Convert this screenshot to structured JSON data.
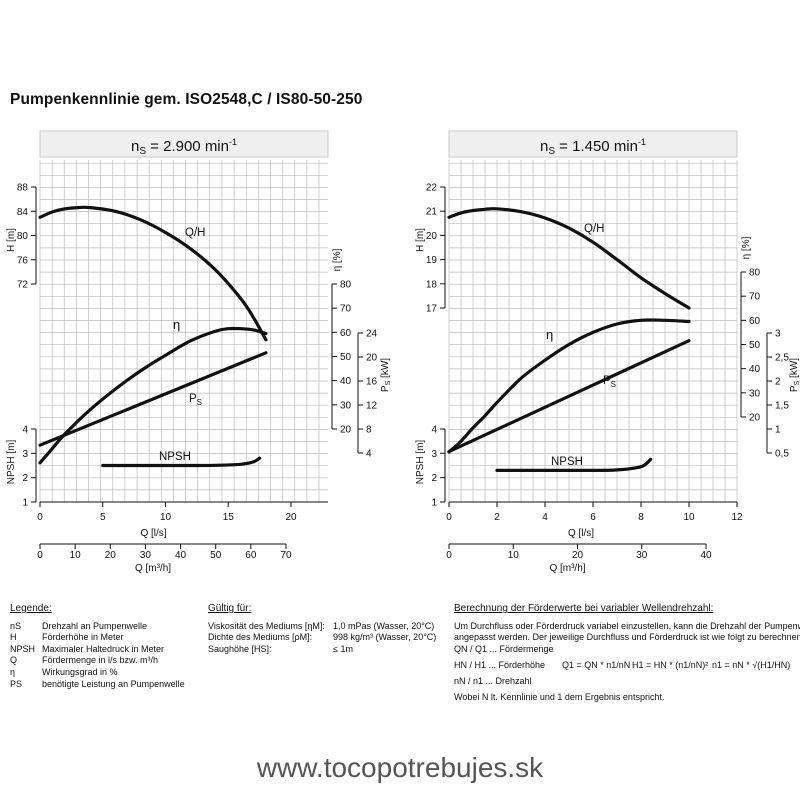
{
  "page_title": "Pumpenkennlinie gem. ISO2548,C / IS80-50-250",
  "website": "www.tocopotrebujes.sk",
  "colors": {
    "grid": "#bbbbbb",
    "curve": "#111111",
    "header_bg": "#efefef"
  },
  "chart_data": [
    {
      "type": "line",
      "title": "n",
      "title_sub": "S",
      "title_value": " = 2.900 min",
      "title_sup": "-1",
      "x": {
        "label": "Q [l/s]",
        "ticks": [
          0,
          5,
          10,
          15,
          20
        ],
        "range": [
          0,
          23.6
        ]
      },
      "x2": {
        "label": "Q [m³/h]",
        "ticks": [
          0,
          10,
          20,
          30,
          40,
          50,
          60,
          70
        ]
      },
      "h_axis": {
        "label": "H [m]",
        "ticks": [
          72,
          76,
          80,
          84,
          88
        ]
      },
      "npsh_axis": {
        "label": "NPSH [m]",
        "ticks": [
          1,
          2,
          3,
          4
        ]
      },
      "eta_axis": {
        "label": "η [%]",
        "ticks": [
          20,
          30,
          40,
          50,
          60,
          70,
          80
        ]
      },
      "ps_axis": {
        "label": "P",
        "label_sub": "S",
        "label_unit": " [kW]",
        "ticks": [
          "4",
          "8",
          "12",
          "16",
          "20",
          "24"
        ]
      },
      "series": [
        {
          "name": "Q/H",
          "x": [
            0,
            1,
            2,
            3,
            4,
            6,
            8,
            10,
            12,
            14,
            16,
            17,
            18
          ],
          "y": [
            83.0,
            83.9,
            84.4,
            84.6,
            84.6,
            84.0,
            82.6,
            80.5,
            77.8,
            74.3,
            69.6,
            66.5,
            62.8
          ]
        },
        {
          "name": "η",
          "x": [
            0,
            1,
            2,
            4,
            6,
            8,
            10,
            12,
            14,
            15,
            16,
            17,
            18
          ],
          "y": [
            6,
            12,
            18,
            28,
            36.5,
            44.0,
            50.5,
            56.5,
            60.5,
            61.5,
            61.5,
            61,
            59.5
          ]
        },
        {
          "name": "P",
          "label_sub": "S",
          "x": [
            0,
            18
          ],
          "y": [
            5.3,
            20.7
          ]
        },
        {
          "name": "NPSH",
          "x": [
            5,
            8,
            10,
            12,
            14,
            16,
            17,
            17.5
          ],
          "y": [
            2.5,
            2.5,
            2.5,
            2.5,
            2.51,
            2.55,
            2.65,
            2.8
          ]
        }
      ]
    },
    {
      "type": "line",
      "title": "n",
      "title_sub": "S",
      "title_value": " = 1.450 min",
      "title_sup": "-1",
      "x": {
        "label": "Q [l/s]",
        "ticks": [
          0,
          2,
          4,
          6,
          8,
          10,
          12
        ],
        "range": [
          0,
          12
        ]
      },
      "x2": {
        "label": "Q [m³/h]",
        "ticks": [
          0,
          10,
          20,
          30,
          40
        ]
      },
      "h_axis": {
        "label": "H [m]",
        "ticks": [
          17,
          18,
          19,
          20,
          21,
          22
        ]
      },
      "npsh_axis": {
        "label": "NPSH [m]",
        "ticks": [
          1,
          2,
          3,
          4
        ]
      },
      "eta_axis": {
        "label": "η [%]",
        "ticks": [
          20,
          30,
          40,
          50,
          60,
          70,
          80
        ]
      },
      "ps_axis": {
        "label": "P",
        "label_sub": "S",
        "label_unit": " [kW]",
        "ticks": [
          "0,5",
          "1",
          "1,5",
          "2",
          "2,5",
          "3"
        ]
      },
      "series": [
        {
          "name": "Q/H",
          "x": [
            0,
            0.5,
            1,
            1.5,
            2,
            3,
            4,
            5,
            6,
            7,
            8,
            9,
            10
          ],
          "y": [
            20.75,
            20.93,
            21.03,
            21.08,
            21.1,
            20.98,
            20.72,
            20.3,
            19.72,
            19.0,
            18.25,
            17.6,
            17.0
          ]
        },
        {
          "name": "η",
          "x": [
            0,
            0.5,
            1,
            1.5,
            2,
            3,
            4,
            5,
            6,
            7,
            8,
            9,
            10
          ],
          "y": [
            5.5,
            10,
            15.5,
            20.5,
            26,
            36,
            43.5,
            50,
            55,
            58.5,
            60,
            60,
            59.5
          ]
        },
        {
          "name": "P",
          "label_sub": "S",
          "x": [
            0,
            10
          ],
          "y": [
            0.53,
            2.84
          ]
        },
        {
          "name": "NPSH",
          "x": [
            2,
            4,
            6,
            7,
            8,
            8.4
          ],
          "y": [
            2.3,
            2.3,
            2.3,
            2.32,
            2.45,
            2.75
          ]
        }
      ]
    }
  ],
  "legend": {
    "heading": "Legende:",
    "items": [
      {
        "sym": "nS",
        "text": "Drehzahl an Pumpenwelle"
      },
      {
        "sym": "H",
        "text": "Förderhöhe in Meter"
      },
      {
        "sym": "NPSH",
        "text": "Maximaler Haltedruck in Meter"
      },
      {
        "sym": "Q",
        "text": "Fördermenge in l/s bzw. m³/h"
      },
      {
        "sym": "η",
        "text": "Wirkungsgrad in %"
      },
      {
        "sym": "PS",
        "text": "benötigte Leistung an Pumpenwelle"
      }
    ]
  },
  "valid_for": {
    "heading": "Gültig für:",
    "rows": [
      {
        "k": "Viskosität des Mediums [ηM]:",
        "v": "1,0 mPas (Wasser, 20°C)"
      },
      {
        "k": "Dichte des Mediums [ρM]:",
        "v": "998 kg/m³ (Wasser, 20°C)"
      },
      {
        "k": "Saughöhe [HS]:",
        "v": "≤ 1m"
      }
    ]
  },
  "calc": {
    "heading": "Berechnung der Förderwerte bei variabler Wellendrehzahl:",
    "intro1": "Um Durchfluss oder Förderdruck variabel einzustellen, kann die Drehzahl der Pumpenwelle",
    "intro2": "angepasst werden. Der jeweilige Durchfluss und Förderdruck ist wie folgt zu berechnen:",
    "def1": "QN / Q1 ... Fördermenge",
    "def2": "HN / H1 ... Förderhöhe",
    "def3": "nN / n1 ... Drehzahl",
    "f1": "Q1 = QN * n1/nN",
    "f2": "H1 = HN * (n1/nN)²",
    "f3": "n1 = nN * √(H1/HN)",
    "note": "Wobei N lt. Kennlinie und 1 dem Ergebnis entspricht."
  }
}
